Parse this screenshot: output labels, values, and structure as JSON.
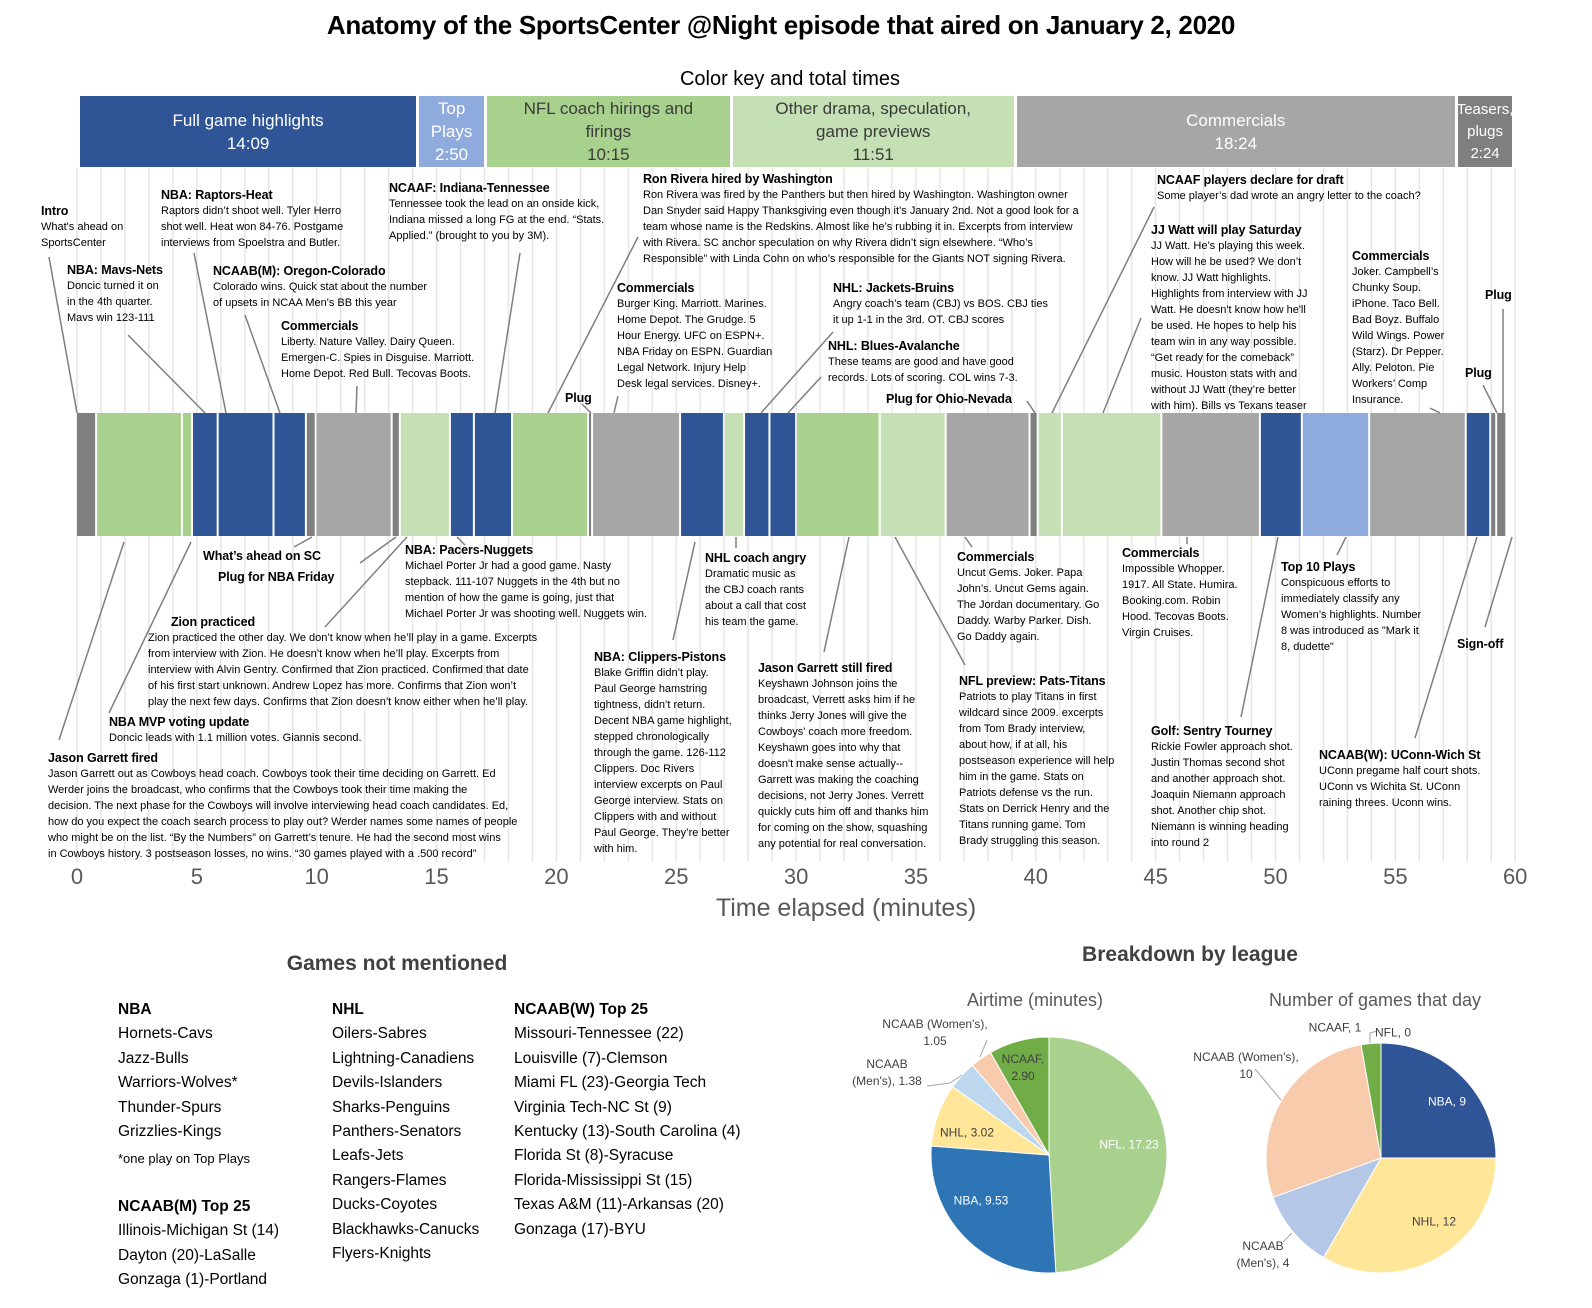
{
  "title": "Anatomy of the SportsCenter @Night episode that aired on January 2, 2020",
  "color_key": {
    "title": "Color key and total times",
    "items": [
      {
        "key": "full",
        "label": "Full game highlights",
        "time": "14:09",
        "minutes": 14.15,
        "color": "#2F5597"
      },
      {
        "key": "top",
        "label": "Top\nPlays",
        "time": "2:50",
        "minutes": 2.83,
        "color": "#8FAADC"
      },
      {
        "key": "nfl",
        "label": "NFL coach hirings and\nfirings",
        "time": "10:15",
        "minutes": 10.25,
        "color": "#A9D18E"
      },
      {
        "key": "drama",
        "label": "Other drama, speculation,\ngame previews",
        "time": "11:51",
        "minutes": 11.85,
        "color": "#C5E0B4"
      },
      {
        "key": "comm",
        "label": "Commercials",
        "time": "18:24",
        "minutes": 18.4,
        "color": "#A6A6A6"
      },
      {
        "key": "teaser",
        "label": "Teasers,\nplugs",
        "time": "2:24",
        "minutes": 2.4,
        "color": "#7F7F7F"
      }
    ]
  },
  "annotations": [
    {
      "title": "Intro",
      "body": "What's ahead on\nSportsCenter"
    },
    {
      "title": "NBA: Mavs-Nets",
      "body": "Doncic turned it on\nin the 4th quarter.\nMavs win 123-111"
    },
    {
      "title": "NBA: Raptors-Heat",
      "body": "Raptors didn’t shoot well. Tyler Herro\nshot well. Heat won 84-76. Postgame\ninterviews from Spoelstra and Butler."
    },
    {
      "title": "NCAAB(M): Oregon-Colorado",
      "body": "Colorado wins. Quick stat about the number\nof upsets in NCAA Men's BB this year"
    },
    {
      "title": "Commercials",
      "body": "Liberty. Nature Valley. Dairy Queen.\nEmergen-C. Spies in Disguise. Marriott.\nHome Depot. Red Bull. Tecovas Boots."
    },
    {
      "title": "NCAAF: Indiana-Tennessee",
      "body": "Tennessee took the lead on an onside kick,\nIndiana missed a long FG at the end. “Stats.\nApplied.” (brought to you by 3M)."
    },
    {
      "title": "Ron Rivera hired by Washington",
      "body": "Ron Rivera was fired by the Panthers but then hired by Washington. Washington owner\nDan Snyder said Happy Thanksgiving even though it’s January 2nd. Not a good look for a\nteam whose name is the Redskins. Almost like he’s rubbing it in. Excerpts from interview\nwith Rivera. SC anchor speculation on why Rivera didn’t sign elsewhere. “Who’s\nResponsible” with Linda Cohn on who’s responsible for the Giants NOT signing Rivera."
    },
    {
      "title": "Commercials",
      "body": "Burger King. Marriott. Marines.\nHome Depot. The Grudge. 5\nHour Energy. UFC on ESPN+.\nNBA Friday on ESPN. Guardian\nLegal Network. Injury Help\nDesk legal services. Disney+."
    },
    {
      "title": "Plug"
    },
    {
      "title": "NHL: Jackets-Bruins",
      "body": "Angry coach’s team (CBJ) vs BOS. CBJ ties\nit up 1-1 in the 3rd. OT. CBJ scores"
    },
    {
      "title": "NHL: Blues-Avalanche",
      "body": "These teams are good and have good\nrecords. Lots of scoring. COL wins 7-3."
    },
    {
      "title": "Plug for Ohio-Nevada"
    },
    {
      "title": "NCAAF players declare for draft",
      "body": "Some player’s dad wrote an angry letter to the coach?"
    },
    {
      "title": "JJ Watt will play Saturday",
      "body": "JJ Watt. He’s playing this week.\nHow will he be used? We don’t\nknow. JJ Watt highlights.\nHighlights from interview with JJ\nWatt. He doesn't know how he'll\nbe used. He hopes to help his\nteam win in any way possible.\n“Get ready for the comeback”\nmusic. Houston stats with and\nwithout JJ Watt (they’re better\nwith him). Bills vs Texans teaser"
    },
    {
      "title": "Commercials",
      "body": "Joker. Campbell’s\nChunky Soup.\niPhone. Taco Bell.\nBad Boyz. Buffalo\nWild Wings. Power\n(Starz). Dr Pepper.\nAlly. Peloton. Pie\nWorkers’ Comp\nInsurance."
    },
    {
      "title": "Plug"
    },
    {
      "title": "Plug"
    },
    {
      "title": "What’s ahead on SC"
    },
    {
      "title": "Plug for NBA Friday"
    },
    {
      "title": "NBA: Pacers-Nuggets",
      "body": "Michael Porter Jr had a good game. Nasty\nstepback. 111-107 Nuggets in the 4th but no\nmention of how the game is going, just that\nMichael Porter Jr was shooting well. Nuggets win."
    },
    {
      "title": "Zion practiced",
      "body": "Zion practiced the other day. We don’t know when he’ll play in a game. Excerpts\nfrom interview with Zion. He doesn’t know when he’ll play. Excerpts from\ninterview with Alvin Gentry. Confirmed that Zion practiced. Confirmed that date\nof his first start unknown. Andrew Lopez has more. Confirms that Zion won’t\nplay the next few days. Confirms that Zion doesn’t know either when he’ll play."
    },
    {
      "title": "NBA MVP voting update",
      "body": "Doncic leads with 1.1 million votes. Giannis second."
    },
    {
      "title": "Jason Garrett fired",
      "body": "Jason Garrett out as Cowboys head coach. Cowboys took their time deciding on Garrett. Ed\nWerder joins the broadcast, who confirms that the Cowboys took their time making the\ndecision. The next phase for the Cowboys will involve interviewing head coach candidates. Ed,\nhow do you expect the coach search process to play out? Werder names some names of people\nwho might be on the list. “By the Numbers” on Garrett’s tenure. He had the second most wins\nin Cowboys history. 3 postseason losses, no wins. “30 games played with a .500 record”"
    },
    {
      "title": "NHL coach angry",
      "body": "Dramatic music as\nthe CBJ coach rants\nabout a call that cost\nhis team the game."
    },
    {
      "title": "NBA: Clippers-Pistons",
      "body": "Blake Griffin didn’t play.\nPaul George hamstring\ntightness, didn’t return.\nDecent NBA game highlight,\nstepped chronologically\nthrough the game. 126-112\nClippers. Doc Rivers\ninterview excerpts on Paul\nGeorge interview. Stats on\nClippers with and without\nPaul George. They’re better\nwith him."
    },
    {
      "title": "Jason Garrett still fired",
      "body": "Keyshawn Johnson joins the\nbroadcast, Verrett asks him if he\nthinks Jerry Jones will give the\nCowboys' coach more freedom.\nKeyshawn goes into why that\ndoesn't make sense actually--\nGarrett was making the coaching\ndecisions, not Jerry Jones. Verrett\nquickly cuts him off and thanks him\nfor coming on the show, squashing\nany potential for real conversation."
    },
    {
      "title": "Commercials",
      "body": "Uncut Gems. Joker. Papa\nJohn’s. Uncut Gems again.\nThe Jordan documentary. Go\nDaddy. Warby Parker. Dish.\nGo Daddy again."
    },
    {
      "title": "NFL preview: Pats-Titans",
      "body": "Patriots to play Titans in first\nwildcard since 2009. excerpts\nfrom Tom Brady interview,\nabout how, if at all, his\npostseason experience will help\nhim in the game. Stats on\nPatriots defense vs the run.\nStats on Derrick Henry and the\nTitans running game. Tom\nBrady struggling this season."
    },
    {
      "title": "Commercials",
      "body": "Impossible Whopper.\n1917. All State. Humira.\nBooking.com. Robin\nHood. Tecovas Boots.\nVirgin Cruises."
    },
    {
      "title": "Golf: Sentry Tourney",
      "body": "Rickie Fowler approach shot.\nJustin Thomas second shot\nand another approach shot.\nJoaquin Niemann approach\nshot. Another chip shot.\nNiemann is winning heading\ninto round 2"
    },
    {
      "title": "Top 10 Plays",
      "body": "Conspicuous efforts to\nimmediately classify any\nWomen’s highlights. Number\n8 was introduced as \"Mark it\n8, dudette\""
    },
    {
      "title": "NCAAB(W): UConn-Wich St",
      "body": "UConn pregame half court shots.\nUConn vs Wichita St. UConn\nraining threes. Uconn wins."
    },
    {
      "title": "Sign-off"
    }
  ],
  "games_not_mentioned": {
    "title": "Games not mentioned",
    "groups": [
      {
        "heading": "NBA",
        "items": [
          "Hornets-Cavs",
          "Jazz-Bulls",
          "Warriors-Wolves*",
          "Thunder-Spurs",
          "Grizzlies-Kings"
        ],
        "note": "*one play on Top Plays"
      },
      {
        "heading": "NCAAB(M) Top 25",
        "items": [
          "Illinois-Michigan St (14)",
          "Dayton (20)-LaSalle",
          "Gonzaga (1)-Portland"
        ]
      },
      {
        "heading": "NHL",
        "items": [
          "Oilers-Sabres",
          "Lightning-Canadiens",
          "Devils-Islanders",
          "Sharks-Penguins",
          "Panthers-Senators",
          "Leafs-Jets",
          "Rangers-Flames",
          "Ducks-Coyotes",
          "Blackhawks-Canucks",
          "Flyers-Knights"
        ]
      },
      {
        "heading": "NCAAB(W) Top 25",
        "items": [
          "Missouri-Tennessee (22)",
          "Louisville (7)-Clemson",
          "Miami FL (23)-Georgia Tech",
          "Virginia Tech-NC St (9)",
          "Kentucky (13)-South Carolina (4)",
          "Florida St (8)-Syracuse",
          "Florida-Mississippi St (15)",
          "Texas A&M (11)-Arkansas (20)",
          "Gonzaga (17)-BYU"
        ]
      }
    ]
  },
  "breakdown_title": "Breakdown by league",
  "chart_data": [
    {
      "type": "bar",
      "orientation": "horizontal-timeline",
      "xlabel": "Time elapsed (minutes)",
      "xlim": [
        0,
        60
      ],
      "xticks": [
        0,
        5,
        10,
        15,
        20,
        25,
        30,
        35,
        40,
        45,
        50,
        55,
        60
      ],
      "grid": "vertical, every minute",
      "segments": [
        {
          "start": 0,
          "end": 0.84,
          "category": "teaser"
        },
        {
          "start": 0.84,
          "end": 4.42,
          "category": "nfl"
        },
        {
          "start": 4.42,
          "end": 4.84,
          "category": "nfl"
        },
        {
          "start": 4.84,
          "end": 5.91,
          "category": "full"
        },
        {
          "start": 5.91,
          "end": 8.24,
          "category": "full"
        },
        {
          "start": 8.24,
          "end": 9.59,
          "category": "full"
        },
        {
          "start": 9.59,
          "end": 10.0,
          "category": "teaser"
        },
        {
          "start": 10.0,
          "end": 13.17,
          "category": "comm"
        },
        {
          "start": 13.17,
          "end": 13.51,
          "category": "teaser"
        },
        {
          "start": 13.51,
          "end": 15.6,
          "category": "drama"
        },
        {
          "start": 15.6,
          "end": 16.6,
          "category": "full"
        },
        {
          "start": 16.6,
          "end": 18.19,
          "category": "full"
        },
        {
          "start": 18.19,
          "end": 21.36,
          "category": "nfl"
        },
        {
          "start": 21.36,
          "end": 21.53,
          "category": "teaser"
        },
        {
          "start": 21.53,
          "end": 25.2,
          "category": "comm"
        },
        {
          "start": 25.2,
          "end": 27.03,
          "category": "full"
        },
        {
          "start": 27.03,
          "end": 27.87,
          "category": "drama"
        },
        {
          "start": 27.87,
          "end": 28.93,
          "category": "full"
        },
        {
          "start": 28.93,
          "end": 30.04,
          "category": "full"
        },
        {
          "start": 30.04,
          "end": 33.53,
          "category": "nfl"
        },
        {
          "start": 33.53,
          "end": 36.28,
          "category": "drama"
        },
        {
          "start": 36.28,
          "end": 39.78,
          "category": "comm"
        },
        {
          "start": 39.78,
          "end": 40.12,
          "category": "teaser"
        },
        {
          "start": 40.12,
          "end": 41.13,
          "category": "drama"
        },
        {
          "start": 41.13,
          "end": 45.28,
          "category": "drama"
        },
        {
          "start": 45.28,
          "end": 49.39,
          "category": "comm"
        },
        {
          "start": 49.39,
          "end": 51.14,
          "category": "full"
        },
        {
          "start": 51.14,
          "end": 53.95,
          "category": "top"
        },
        {
          "start": 53.95,
          "end": 57.98,
          "category": "comm"
        },
        {
          "start": 57.98,
          "end": 59.0,
          "category": "full"
        },
        {
          "start": 59.0,
          "end": 59.25,
          "category": "teaser"
        },
        {
          "start": 59.25,
          "end": 59.67,
          "category": "teaser"
        }
      ]
    },
    {
      "type": "pie",
      "title": "Airtime (minutes)",
      "decimals": 2,
      "slices": [
        {
          "name": "NFL",
          "value": 17.23,
          "color": "#A9D18E"
        },
        {
          "name": "NBA",
          "value": 9.53,
          "color": "#2E75B6"
        },
        {
          "name": "NHL",
          "value": 3.02,
          "color": "#FFE699"
        },
        {
          "name": "NCAAB (Men's)",
          "value": 1.38,
          "color": "#BDD7EE"
        },
        {
          "name": "NCAAB (Women's)",
          "value": 1.05,
          "color": "#F8CBAD"
        },
        {
          "name": "NCAAF",
          "value": 2.9,
          "color": "#70AD47"
        }
      ]
    },
    {
      "type": "pie",
      "title": "Number of games that day",
      "decimals": 0,
      "slices": [
        {
          "name": "NFL",
          "value": 0,
          "color": "#A9D18E"
        },
        {
          "name": "NBA",
          "value": 9,
          "color": "#2F5597"
        },
        {
          "name": "NHL",
          "value": 12,
          "color": "#FFE699"
        },
        {
          "name": "NCAAB (Men's)",
          "value": 4,
          "color": "#B4C7E7"
        },
        {
          "name": "NCAAB (Women's)",
          "value": 10,
          "color": "#F8CBAD"
        },
        {
          "name": "NCAAF",
          "value": 1,
          "color": "#70AD47"
        }
      ]
    }
  ]
}
